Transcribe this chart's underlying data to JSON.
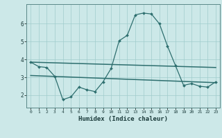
{
  "x": [
    0,
    1,
    2,
    3,
    4,
    5,
    6,
    7,
    8,
    9,
    10,
    11,
    12,
    13,
    14,
    15,
    16,
    17,
    18,
    19,
    20,
    21,
    22,
    23
  ],
  "line1": [
    3.85,
    3.6,
    3.55,
    3.05,
    1.75,
    1.9,
    2.45,
    2.3,
    2.2,
    2.75,
    3.5,
    5.05,
    5.35,
    6.5,
    6.6,
    6.55,
    6.0,
    4.75,
    3.65,
    2.55,
    2.65,
    2.5,
    2.45,
    2.75
  ],
  "trend1_x": [
    0,
    23
  ],
  "trend1_y": [
    3.85,
    3.55
  ],
  "trend2_x": [
    0,
    23
  ],
  "trend2_y": [
    3.1,
    2.7
  ],
  "xlabel": "Humidex (Indice chaleur)",
  "xlim": [
    -0.5,
    23.5
  ],
  "ylim": [
    1.3,
    7.1
  ],
  "yticks": [
    2,
    3,
    4,
    5,
    6
  ],
  "xticks": [
    0,
    1,
    2,
    3,
    4,
    5,
    6,
    7,
    8,
    9,
    10,
    11,
    12,
    13,
    14,
    15,
    16,
    17,
    18,
    19,
    20,
    21,
    22,
    23
  ],
  "line_color": "#2d6e6e",
  "bg_color": "#cce8e8",
  "grid_color": "#a0cccc"
}
